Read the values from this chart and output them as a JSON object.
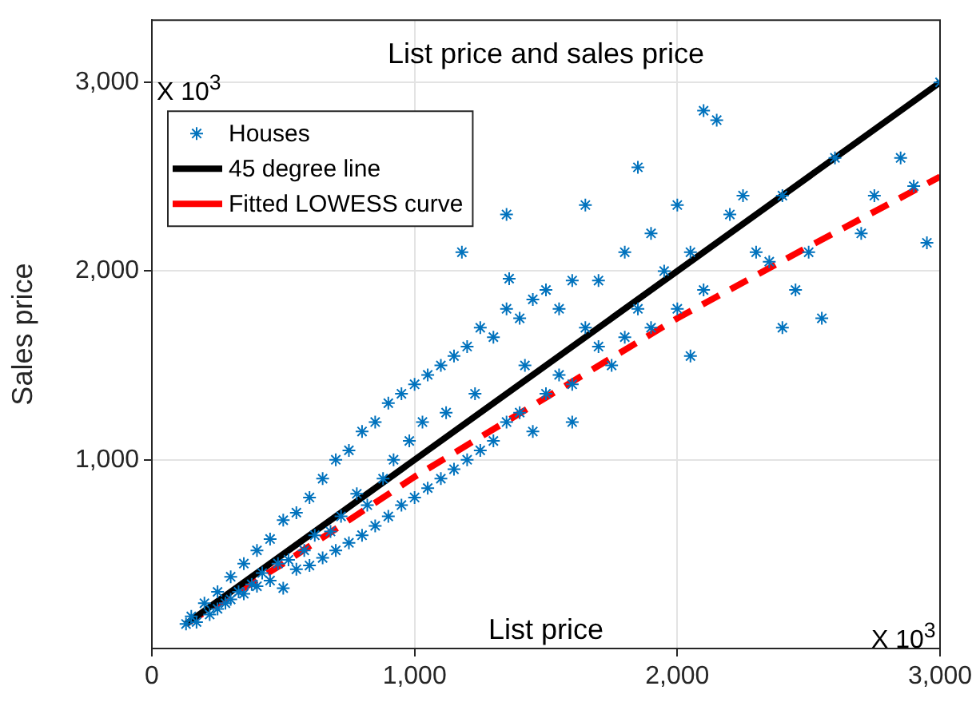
{
  "chart_data": {
    "type": "scatter",
    "title": "List price and sales price",
    "xlabel": "List price",
    "ylabel": "Sales price",
    "annotations": [
      "X 10$^{3}$",
      "X 10$^{3}$"
    ],
    "xlim": [
      0,
      3000
    ],
    "xticks": [
      0,
      {
        "value": 1000,
        "label": "1,000"
      },
      {
        "value": 2000,
        "label": "2,000"
      },
      {
        "value": 3000,
        "label": "3,000"
      }
    ],
    "ylim": [
      0,
      3330
    ],
    "yticks": [
      {
        "value": 1000,
        "label": "1,000"
      },
      {
        "value": 2000,
        "label": "2,000"
      },
      {
        "value": 3000,
        "label": "3,000"
      }
    ],
    "grid": true,
    "legend": "top left",
    "series": [
      {
        "name": "Houses",
        "type": "scatter",
        "marker": "cross",
        "color": "#0072bd",
        "x": [
          130,
          150,
          170,
          200,
          220,
          250,
          250,
          280,
          300,
          300,
          330,
          350,
          350,
          380,
          400,
          400,
          420,
          450,
          450,
          480,
          500,
          500,
          520,
          550,
          550,
          580,
          600,
          600,
          620,
          650,
          650,
          680,
          700,
          700,
          720,
          750,
          750,
          780,
          800,
          800,
          820,
          850,
          850,
          880,
          900,
          900,
          920,
          950,
          950,
          980,
          1000,
          1000,
          1030,
          1050,
          1050,
          1100,
          1100,
          1120,
          1150,
          1150,
          1200,
          1200,
          1230,
          1250,
          1250,
          1300,
          1300,
          1350,
          1350,
          1400,
          1400,
          1420,
          1450,
          1450,
          1500,
          1500,
          1550,
          1550,
          1600,
          1600,
          1650,
          1700,
          1700,
          1750,
          1800,
          1800,
          1850,
          1900,
          1900,
          1950,
          2000,
          2000,
          2050,
          2100,
          2150,
          2100,
          2200,
          2250,
          2300,
          2350,
          2400,
          2450,
          2500,
          2550,
          2600,
          2700,
          2750,
          2850,
          2900,
          2950,
          3000,
          1180,
          1350,
          1650,
          1850,
          2400,
          2050,
          1600,
          1360
        ],
        "values": [
          130,
          170,
          140,
          240,
          180,
          300,
          210,
          240,
          380,
          260,
          300,
          450,
          290,
          340,
          520,
          330,
          400,
          580,
          360,
          450,
          680,
          320,
          470,
          720,
          420,
          520,
          800,
          440,
          600,
          900,
          480,
          620,
          1000,
          520,
          700,
          1050,
          560,
          820,
          1150,
          600,
          760,
          1200,
          650,
          900,
          1300,
          700,
          1000,
          1350,
          760,
          1100,
          1400,
          800,
          1200,
          1450,
          850,
          1500,
          900,
          1250,
          1550,
          950,
          1600,
          1000,
          1350,
          1700,
          1050,
          1650,
          1100,
          1800,
          1200,
          1750,
          1250,
          1500,
          1850,
          1150,
          1900,
          1350,
          1800,
          1450,
          1950,
          1400,
          1700,
          1950,
          1600,
          1500,
          2100,
          1650,
          1800,
          2200,
          1700,
          2000,
          2350,
          1800,
          2100,
          2850,
          2800,
          1900,
          2300,
          2400,
          2100,
          2050,
          2400,
          1900,
          2100,
          1750,
          2600,
          2200,
          2400,
          2600,
          2450,
          2150,
          3000,
          2100,
          2300,
          2350,
          2550,
          1700,
          1550,
          1200,
          1960
        ]
      },
      {
        "name": "45 degree line",
        "type": "line",
        "marker": "none",
        "line_style": "solid",
        "color": "#000000",
        "x": [
          130,
          3000
        ],
        "values": [
          130,
          3000
        ]
      },
      {
        "name": "Fitted LOWESS curve",
        "type": "line",
        "marker": "none",
        "line_style": "dashed",
        "color": "#ff0000",
        "x": [
          130,
          500,
          1000,
          1500,
          2000,
          2500,
          3000
        ],
        "values": [
          130,
          450,
          910,
          1330,
          1750,
          2130,
          2500
        ]
      }
    ]
  }
}
